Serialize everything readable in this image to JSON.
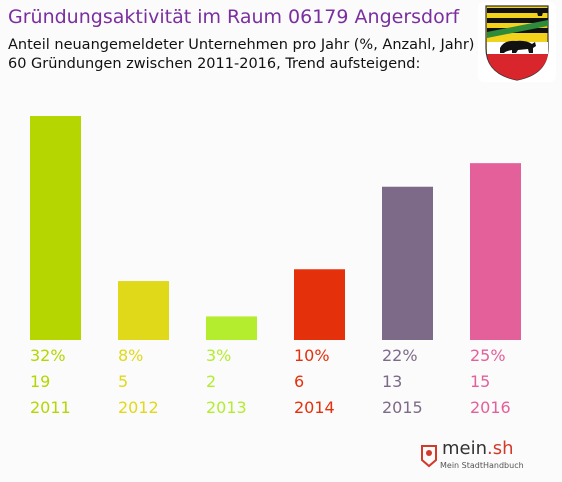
{
  "header": {
    "title": "Gründungsaktivität im Raum 06179 Angersdorf",
    "subtitle_line1": "Anteil neuangemeldeter Unternehmen pro Jahr (%, Anzahl, Jahr)",
    "subtitle_line2": "60 Gründungen zwischen 2011-2016, Trend aufsteigend:"
  },
  "footer": {
    "logo_name": "mein",
    "logo_domain": ".sh",
    "logo_tagline": "Mein StadtHandbuch"
  },
  "colors": {
    "title": "#7a2fa0",
    "crest_yellow": "#f2d21b",
    "crest_black": "#111111",
    "crest_red": "#d8262c"
  },
  "chart_data": {
    "type": "bar",
    "title": "Gründungsaktivität im Raum 06179 Angersdorf",
    "categories": [
      "2011",
      "2012",
      "2013",
      "2014",
      "2015",
      "2016"
    ],
    "values": [
      19,
      5,
      2,
      6,
      13,
      15
    ],
    "percent_labels": [
      "32%",
      "8%",
      "3%",
      "10%",
      "22%",
      "25%"
    ],
    "count_labels": [
      "19",
      "5",
      "2",
      "6",
      "13",
      "15"
    ],
    "colors": [
      "#b5d600",
      "#e0d91a",
      "#b4ec2e",
      "#e4300b",
      "#7d6a89",
      "#e4609a"
    ],
    "ylim": [
      0,
      19
    ],
    "grid": false,
    "legend": "none"
  }
}
